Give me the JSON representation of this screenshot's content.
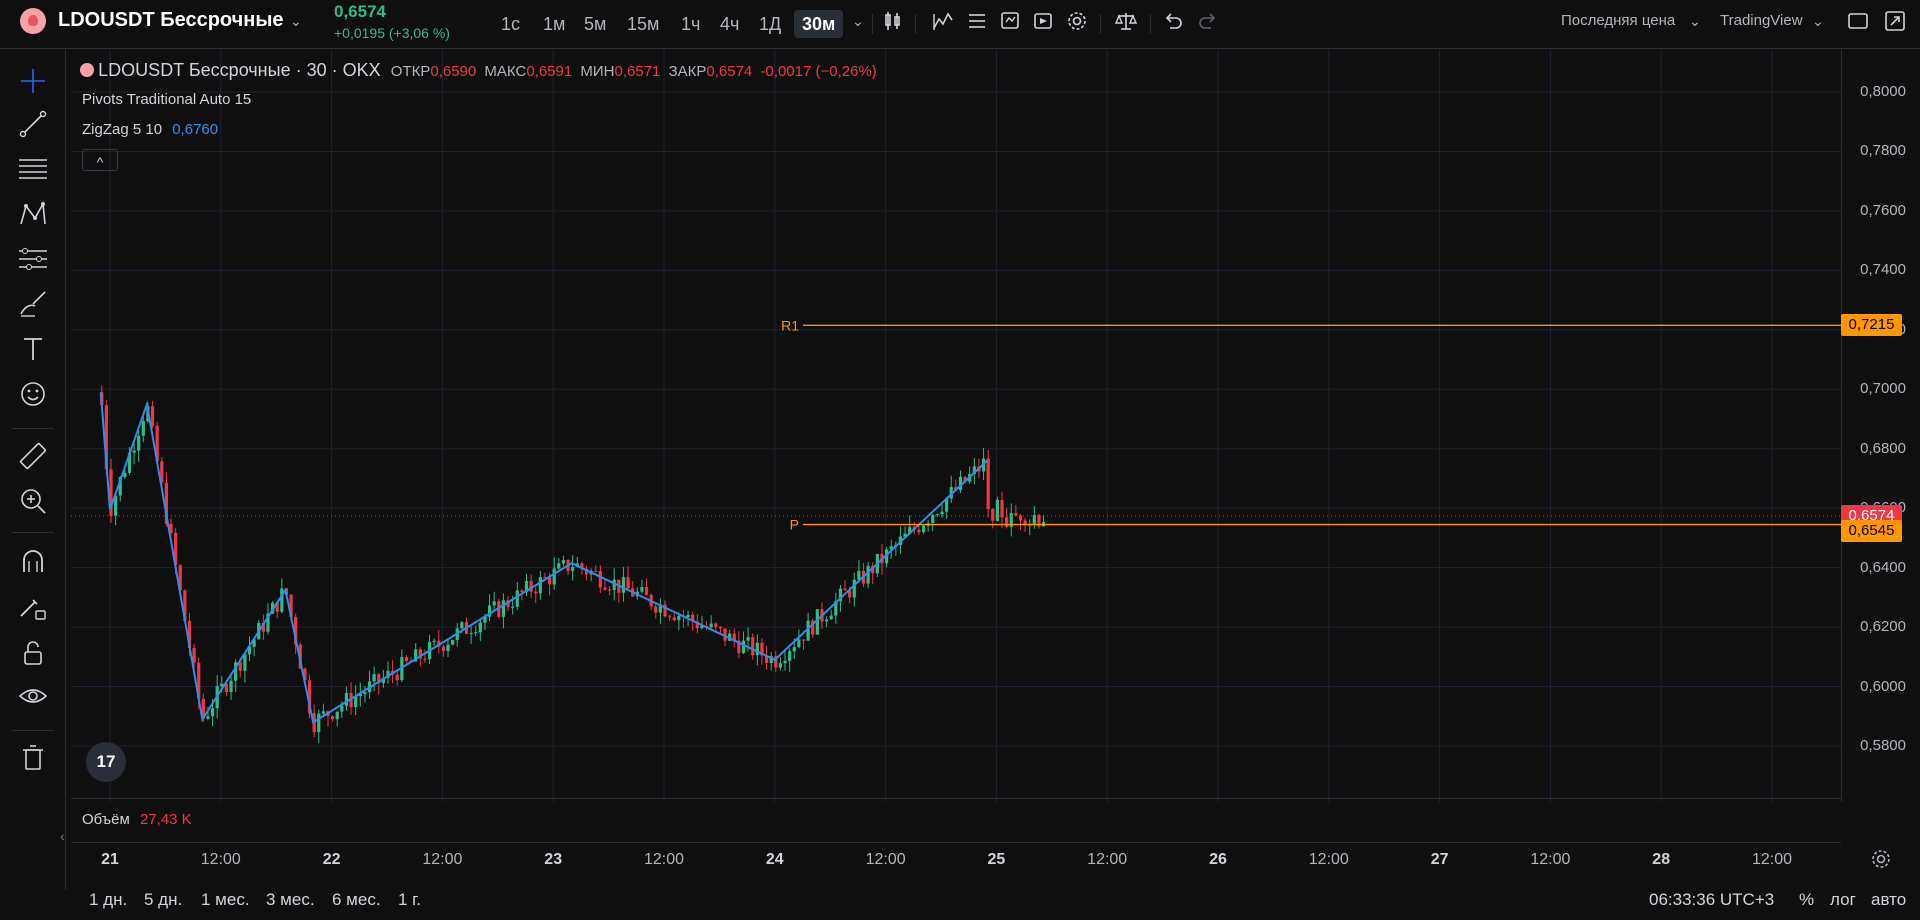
{
  "header": {
    "symbol_title": "LDOUSDT Бессрочные",
    "last_price": "0,6574",
    "change": "+0,0195 (+3,06 %)",
    "timeframes": [
      "1с",
      "1м",
      "5м",
      "15м",
      "1ч",
      "4ч",
      "1Д",
      "30м"
    ],
    "active_timeframe": "30м",
    "price_type_dropdown": "Последняя цена",
    "source_dropdown": "TradingView"
  },
  "legend": {
    "symbol_line": "LDOUSDT Бессрочные · 30 · OKX",
    "open_label": "ОТКР",
    "open_value": "0,6590",
    "high_label": "МАКС",
    "high_value": "0,6591",
    "low_label": "МИН",
    "low_value": "0,6571",
    "close_label": "ЗАКР",
    "close_value": "0,6574",
    "change_value": "-0,0017 (−0,26%)",
    "indicator1": "Pivots Traditional Auto 15",
    "indicator2_name": "ZigZag 5 10",
    "indicator2_value": "0,6760",
    "collapse_icon": "^"
  },
  "volume": {
    "label": "Объём",
    "value": "27,43 K"
  },
  "pivots": {
    "r1_label": "R1",
    "r1_value": "0,7215",
    "p_label": "P",
    "p_value": "0,6545"
  },
  "price_scale": {
    "ticks": [
      "0,8000",
      "0,7800",
      "0,7600",
      "0,7400",
      "0,7200",
      "0,7000",
      "0,6800",
      "0,6600",
      "0,6400",
      "0,6200",
      "0,6000",
      "0,5800"
    ],
    "current_price_label": "0,6574"
  },
  "time_axis": {
    "ticks": [
      "21",
      "12:00",
      "22",
      "12:00",
      "23",
      "12:00",
      "24",
      "12:00",
      "25",
      "12:00",
      "26",
      "12:00",
      "27",
      "12:00",
      "28",
      "12:00"
    ]
  },
  "bottom_bar": {
    "ranges": [
      "1 дн.",
      "5 дн.",
      "1 мес.",
      "3 мес.",
      "6 мес.",
      "1 г."
    ],
    "clock": "06:33:36 UTC+3",
    "percent": "%",
    "log": "лог",
    "auto": "авто"
  },
  "colors": {
    "up": "#2ebd85",
    "down": "#f23645",
    "zigzag": "#2d8fe8",
    "pivot": "#ff9800",
    "current": "#f23645"
  },
  "chart_data": {
    "type": "candlestick",
    "symbol": "LDOUSDT",
    "interval": "30м",
    "ylim": [
      0.57,
      0.81
    ],
    "zigzag": [
      {
        "x": "20 23:00",
        "y": 0.699
      },
      {
        "x": "21 00:00",
        "y": 0.6595
      },
      {
        "x": "21 04:00",
        "y": 0.695
      },
      {
        "x": "21 10:00",
        "y": 0.589
      },
      {
        "x": "21 19:00",
        "y": 0.6325
      },
      {
        "x": "21 22:00",
        "y": 0.588
      },
      {
        "x": "23 02:00",
        "y": 0.6415
      },
      {
        "x": "24 00:00",
        "y": 0.609
      },
      {
        "x": "24 23:00",
        "y": 0.676
      }
    ],
    "last_close": 0.6574,
    "pivot_levels": {
      "R1": 0.7215,
      "P": 0.6545
    }
  }
}
